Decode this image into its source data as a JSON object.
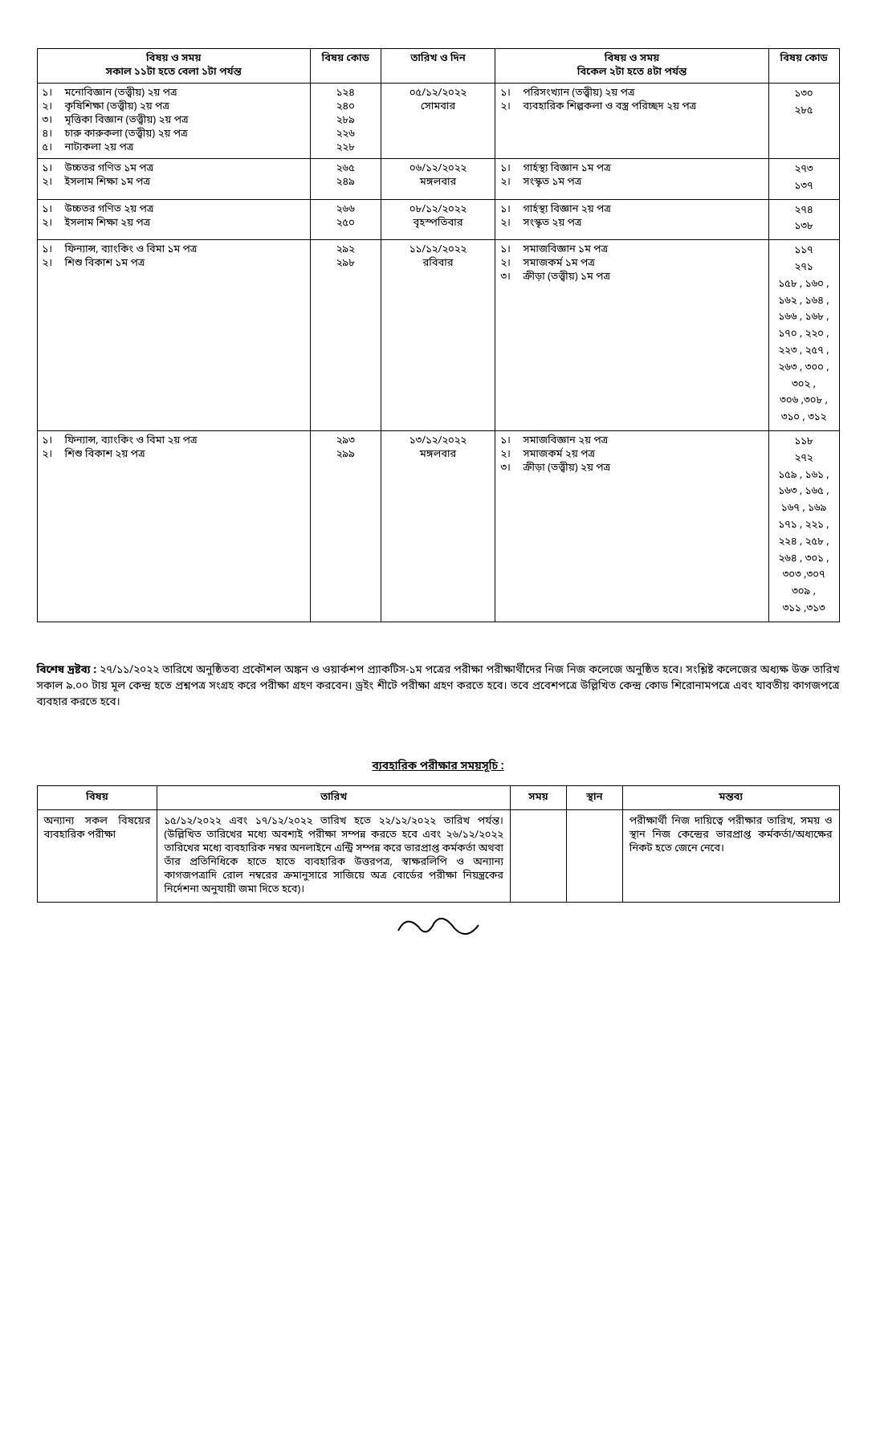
{
  "exam_table": {
    "header": {
      "morning_subject": "বিষয় ও সময়",
      "morning_time": "সকাল ১১টা হতে বেলা ১টা পর্যন্ত",
      "morning_code": "বিষয় কোড",
      "date_day": "তারিখ ও দিন",
      "afternoon_subject": "বিষয় ও সময়",
      "afternoon_time": "বিকেল ২টা হতে ৪টা পর্যন্ত",
      "afternoon_code": "বিষয় কোড"
    },
    "rows": [
      {
        "morning": [
          {
            "n": "১।",
            "txt": "মনোবিজ্ঞান (তত্ত্বীয়) ২য় পত্র",
            "code": "১২৪"
          },
          {
            "n": "২।",
            "txt": "কৃষিশিক্ষা (তত্ত্বীয়) ২য় পত্র",
            "code": "২৪০"
          },
          {
            "n": "৩।",
            "txt": "মৃত্তিকা বিজ্ঞান (তত্ত্বীয়) ২য় পত্র",
            "code": "২৮৯"
          },
          {
            "n": "৪।",
            "txt": "চারু কারুকলা  (তত্ত্বীয়) ২য় পত্র",
            "code": "২২৬"
          },
          {
            "n": "৫।",
            "txt": "নাট্যকলা ২য় পত্র",
            "code": "২২৮"
          }
        ],
        "date": "০৫/১২/২০২২",
        "day": "সোমবার",
        "afternoon": [
          {
            "n": "১।",
            "txt": "পরিসংখ্যান (তত্ত্বীয়) ২য় পত্র",
            "code": "১৩০"
          },
          {
            "n": "২।",
            "txt": "ব্যবহারিক শিল্পকলা ও বস্ত্র পরিচ্ছদ ২য় পত্র",
            "code": "২৮৫"
          }
        ]
      },
      {
        "morning": [
          {
            "n": "১।",
            "txt": "উচ্চতর গণিত ১ম পত্র",
            "code": "২৬৫"
          },
          {
            "n": "২।",
            "txt": "ইসলাম শিক্ষা ১ম পত্র",
            "code": "২৪৯"
          }
        ],
        "date": "০৬/১২/২০২২",
        "day": "মঙ্গলবার",
        "afternoon": [
          {
            "n": "১।",
            "txt": "গার্হস্থ্য বিজ্ঞান ১ম পত্র",
            "code": "২৭৩"
          },
          {
            "n": "২।",
            "txt": "সংস্কৃত ১ম পত্র",
            "code": "১৩৭"
          }
        ]
      },
      {
        "morning": [
          {
            "n": "১।",
            "txt": "উচ্চতর গণিত ২য় পত্র",
            "code": "২৬৬"
          },
          {
            "n": "২।",
            "txt": "ইসলাম শিক্ষা ২য় পত্র",
            "code": "২৫০"
          }
        ],
        "date": "০৮/১২/২০২২",
        "day": "বৃহস্পতিবার",
        "afternoon": [
          {
            "n": "১।",
            "txt": "গার্হস্থ্য বিজ্ঞান ২য় পত্র",
            "code": "২৭৪"
          },
          {
            "n": "২।",
            "txt": "সংস্কৃত ২য় পত্র",
            "code": "১৩৮"
          }
        ]
      },
      {
        "morning": [
          {
            "n": "১।",
            "txt": "ফিন্যান্স, ব্যাংকিং ও বিমা ১ম পত্র",
            "code": "২৯২"
          },
          {
            "n": "২।",
            "txt": "শিশু বিকাশ ১ম পত্র",
            "code": "২৯৮"
          }
        ],
        "date": "১১/১২/২০২২",
        "day": "রবিবার",
        "afternoon": [
          {
            "n": "১।",
            "txt": "সমাজবিজ্ঞান ১ম পত্র",
            "code": "১১৭"
          },
          {
            "n": "২।",
            "txt": "সমাজকর্ম ১ম পত্র",
            "code": "২৭১"
          },
          {
            "n": "৩।",
            "txt": "ক্রীড়া (তত্ত্বীয়) ১ম পত্র",
            "code": "১৫৮ , ১৬০ ,\n১৬২ , ১৬৪ ,\n১৬৬ , ১৬৮ ,\n১৭০ , ২২০ ,\n২২৩ , ২৫৭ ,\n২৬৩ ,  ৩০০ ,\n৩০২ ,\n৩০৬ ,৩০৮ ,\n৩১০ , ৩১২"
          }
        ]
      },
      {
        "morning": [
          {
            "n": "১।",
            "txt": "ফিন্যান্স, ব্যাংকিং ও বিমা ২য় পত্র",
            "code": "২৯৩"
          },
          {
            "n": "২।",
            "txt": "শিশু বিকাশ ২য় পত্র",
            "code": "২৯৯"
          }
        ],
        "date": "১৩/১২/২০২২",
        "day": "মঙ্গলবার",
        "afternoon": [
          {
            "n": "১।",
            "txt": "সমাজবিজ্ঞান ২য় পত্র",
            "code": "১১৮"
          },
          {
            "n": "২।",
            "txt": "সমাজকর্ম ২য় পত্র",
            "code": "২৭২"
          },
          {
            "n": "৩।",
            "txt": "ক্রীড়া (তত্ত্বীয়) ২য় পত্র",
            "code": "১৫৯ , ১৬১ ,\n১৬৩ , ১৬৫ ,\n১৬৭ , ১৬৯\n১৭১ , ২২১ ,\n২২৪ , ২৫৮ ,\n২৬৪ ,  ৩০১ ,\n৩০৩ ,৩০৭\n৩০৯ ,\n৩১১ ,৩১৩"
          }
        ]
      }
    ]
  },
  "note_label": "বিশেষ দ্রষ্টব্য : ",
  "note_text": "২৭/১১/২০২২ তারিখে অনুষ্ঠিতব্য প্রকৌশল অঙ্কন ও ওয়ার্কশপ প্র্যাকটিস-১ম পত্রের পরীক্ষা পরীক্ষার্থীদের নিজ নিজ কলেজে অনুষ্ঠিত হবে। সংশ্লিষ্ট কলেজের অধ্যক্ষ উক্ত তারিখ সকাল ৯.০০ টায় মূল কেন্দ্র হতে প্রশ্নপত্র সংগ্রহ করে পরীক্ষা গ্রহণ করবেন। ড্রইং শীটে পরীক্ষা গ্রহণ করতে হবে। তবে প্রবেশপত্রে উল্লিখিত কেন্দ্র কোড শিরোনামপত্রে এবং যাবতীয় কাগজপত্রে ব্যবহার করতে হবে।",
  "practical": {
    "heading": "ব্যবহারিক পরীক্ষার সময়সূচি :",
    "headers": {
      "subject": "বিষয়",
      "date": "তারিখ",
      "time": "সময়",
      "place": "স্থান",
      "remarks": "মন্তব্য"
    },
    "subject_cell": "অন্যান্য সকল বিষয়ের ব্যবহারিক পরীক্ষা",
    "date_cell": "১৫/১২/২০২২ এবং ১৭/১২/২০২২ তারিখ হতে ২২/১২/২০২২ তারিখ পর্যন্ত। (উল্লিখিত তারিখের মধ্যে অবশ্যই পরীক্ষা সম্পন্ন করতে হবে এবং ২৬/১২/২০২২ তারিখের মধ্যে ব্যবহারিক নম্বর অনলাইনে এন্ট্রি সম্পন্ন করে ভারপ্রাপ্ত কর্মকর্তা অথবা তাঁর প্রতিনিধিকে হাতে হাতে ব্যবহারিক উত্তরপত্র, স্বাক্ষরলিপি ও অন্যান্য কাগজপত্রাদি রোল নম্বরের ক্রমানুসারে সাজিয়ে অত্র বোর্ডের পরীক্ষা নিয়ন্ত্রকের নির্দেশনা অনুযায়ী জমা দিতে হবে)।",
    "remarks_cell": "পরীক্ষার্থী নিজ দায়িত্বে পরীক্ষার তারিখ, সময় ও স্থান নিজ কেন্দ্রের ভারপ্রাপ্ত কর্মকর্তা/অধ্যক্ষের নিকট হতে জেনে নেবে।"
  }
}
